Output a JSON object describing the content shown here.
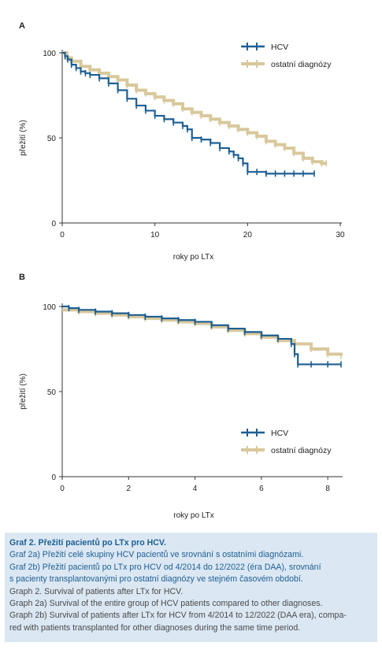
{
  "chart_data": [
    {
      "type": "line",
      "panel_label": "A",
      "xlabel": "roky po LTx",
      "ylabel": "přežití (%)",
      "xlim": [
        0,
        30
      ],
      "ylim": [
        0,
        100
      ],
      "xticks": [
        0,
        10,
        20,
        30
      ],
      "yticks": [
        0,
        50,
        100
      ],
      "grid": false,
      "legend_position": "top-right",
      "series": [
        {
          "name": "HCV",
          "color": "#1d5f93",
          "x": [
            0,
            0.3,
            0.6,
            1,
            1.5,
            2,
            2.5,
            3,
            4,
            5,
            6,
            7,
            8,
            9,
            10,
            11,
            12,
            13,
            13.5,
            14,
            15,
            16,
            17,
            18,
            18.5,
            19,
            19.5,
            20,
            21,
            22,
            23,
            24,
            25,
            26,
            27.2
          ],
          "y": [
            100,
            98,
            96,
            93,
            91,
            89,
            88,
            87,
            85,
            82,
            78,
            73,
            69,
            66,
            63,
            61,
            59,
            57,
            55,
            50,
            49,
            47,
            44,
            42,
            40,
            38,
            35,
            30,
            30,
            29,
            29,
            29,
            29,
            29,
            29
          ]
        },
        {
          "name": "ostatní diagnózy",
          "color": "#d8c89b",
          "x": [
            0,
            0.5,
            1,
            2,
            3,
            4,
            5,
            6,
            7,
            8,
            9,
            10,
            11,
            12,
            13,
            14,
            15,
            16,
            17,
            18,
            19,
            20,
            21,
            22,
            23,
            24,
            25,
            26,
            27,
            28,
            28.5
          ],
          "y": [
            100,
            97,
            95,
            92,
            90,
            88,
            86,
            84,
            81,
            78,
            76,
            74,
            72,
            70,
            67,
            65,
            63,
            61,
            59,
            57,
            55,
            53,
            51,
            48,
            46,
            44,
            41,
            38,
            36,
            35,
            35
          ]
        }
      ]
    },
    {
      "type": "line",
      "panel_label": "B",
      "xlabel": "roky po LTx",
      "ylabel": "přežití (%)",
      "xlim": [
        0,
        8.4
      ],
      "ylim": [
        0,
        100
      ],
      "xticks": [
        0,
        2,
        4,
        6,
        8
      ],
      "yticks": [
        0,
        50,
        100
      ],
      "grid": false,
      "legend_position": "bottom-right",
      "series": [
        {
          "name": "HCV",
          "color": "#1d5f93",
          "x": [
            0,
            0.2,
            0.5,
            1,
            1.5,
            2,
            2.5,
            3,
            3.5,
            4,
            4.5,
            5,
            5.5,
            6,
            6.5,
            6.9,
            7,
            7.1,
            7.5,
            8,
            8.4
          ],
          "y": [
            100,
            99,
            98,
            97,
            96,
            95,
            94,
            93,
            92,
            91,
            89,
            87,
            85,
            83,
            81,
            78,
            72,
            66,
            66,
            66,
            66
          ]
        },
        {
          "name": "ostatní diagnózy",
          "color": "#d8c89b",
          "x": [
            0,
            0.5,
            1,
            1.5,
            2,
            2.5,
            3,
            3.5,
            4,
            4.5,
            5,
            5.5,
            6,
            6.5,
            7,
            7.5,
            8,
            8.4
          ],
          "y": [
            98,
            97,
            96,
            95,
            94,
            93,
            92,
            91,
            90,
            88,
            86,
            84,
            82,
            80,
            78,
            75,
            72,
            71
          ]
        }
      ]
    }
  ],
  "caption": {
    "title": "Graf 2. Přežití pacientů po LTx pro HCV.",
    "lines": [
      {
        "lang": "cz",
        "text": "Graf 2a) Přežití celé skupiny HCV pacientů ve srovnání s ostatními diagnózami."
      },
      {
        "lang": "cz",
        "text": "Graf 2b) Přežití pacientů po LTx pro HCV od 4/2014 do 12/2022 (éra DAA), srovnání"
      },
      {
        "lang": "cz",
        "text": "s pacienty transplantovanými pro ostatní diagnózy ve stejném časovém období."
      },
      {
        "lang": "en",
        "text": "Graph 2. Survival of patients after LTx for HCV."
      },
      {
        "lang": "en",
        "text": "Graph 2a) Survival of the entire group of HCV patients compared to other diagnoses."
      },
      {
        "lang": "en",
        "text": "Graph 2b) Survival of patients after LTx for HCV from 4/2014 to 12/2022 (DAA era), compa-"
      },
      {
        "lang": "en",
        "text": "red with patients transplanted for other diagnoses during the same time period."
      }
    ]
  }
}
